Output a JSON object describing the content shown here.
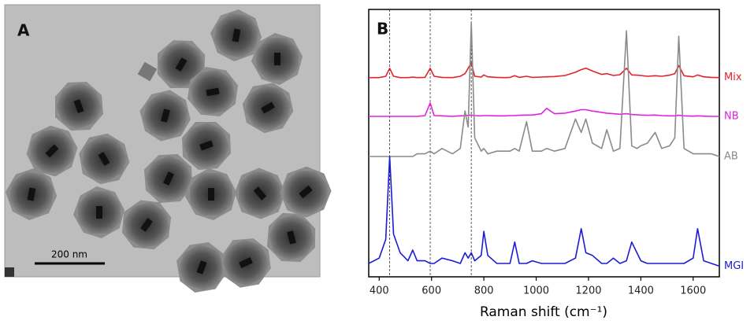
{
  "image_panel": {
    "label": "A",
    "scale_bar": "200 nm"
  },
  "chart_data": {
    "type": "line",
    "panel_label": "B",
    "xlabel": "Raman shift (cm⁻¹)",
    "xlim": [
      360,
      1700
    ],
    "xticks": [
      400,
      600,
      800,
      1000,
      1200,
      1400,
      1600
    ],
    "ylim": [
      0,
      100
    ],
    "reference_lines": [
      440,
      595,
      752
    ],
    "grid": false,
    "x": [
      360,
      400,
      425,
      440,
      455,
      480,
      510,
      528,
      545,
      575,
      595,
      610,
      640,
      680,
      710,
      728,
      740,
      752,
      765,
      790,
      800,
      815,
      850,
      880,
      900,
      918,
      935,
      963,
      985,
      1020,
      1040,
      1070,
      1110,
      1150,
      1172,
      1190,
      1215,
      1250,
      1270,
      1295,
      1320,
      1345,
      1365,
      1385,
      1400,
      1425,
      1455,
      1480,
      1510,
      1530,
      1545,
      1565,
      1600,
      1617,
      1640,
      1670,
      1700
    ],
    "series": [
      {
        "name": "Mix",
        "color": "#e3232c",
        "values": [
          74.5,
          74.5,
          75,
          78,
          75,
          74.5,
          74.5,
          74.7,
          74.5,
          74.6,
          78,
          75,
          74.6,
          74.5,
          75,
          76,
          78,
          80,
          75,
          74.7,
          75.5,
          74.8,
          74.6,
          74.5,
          74.6,
          75.2,
          74.6,
          75,
          74.6,
          74.7,
          74.8,
          74.9,
          75.3,
          76.5,
          77.5,
          78,
          77,
          75.7,
          76,
          75.3,
          75.6,
          78,
          75.5,
          75.4,
          75.3,
          75,
          75.2,
          75,
          75.4,
          76,
          79,
          75.2,
          74.8,
          75.5,
          74.8,
          74.6,
          74.5
        ]
      },
      {
        "name": "NB",
        "color": "#e020e0",
        "values": [
          60,
          60,
          60,
          60,
          60,
          60,
          60,
          60,
          60,
          60.3,
          65,
          60.3,
          60.2,
          60,
          60.2,
          60.3,
          60.4,
          60.5,
          60.3,
          60.2,
          60.3,
          60.3,
          60.2,
          60.2,
          60.3,
          60.3,
          60.4,
          60.5,
          60.5,
          61,
          63,
          61,
          61.2,
          62,
          62.5,
          62.5,
          62,
          61.5,
          61.2,
          61,
          60.8,
          61,
          60.7,
          60.6,
          60.5,
          60.4,
          60.5,
          60.3,
          60.2,
          60.2,
          60.4,
          60.2,
          60.1,
          60.2,
          60.1,
          60,
          60
        ]
      },
      {
        "name": "AB",
        "color": "#8a8a8a",
        "values": [
          45,
          45,
          45,
          45,
          45,
          45,
          45,
          45,
          46,
          46,
          47,
          46,
          48,
          46,
          48,
          62,
          56,
          95,
          52,
          47,
          48,
          46,
          47,
          47,
          47,
          48,
          47,
          58,
          47,
          47,
          48,
          47,
          48,
          59,
          54,
          59,
          50,
          48,
          55,
          47,
          48,
          92,
          49,
          48,
          49,
          50,
          54,
          48,
          49,
          52,
          90,
          48,
          46,
          46,
          46,
          46,
          45
        ]
      },
      {
        "name": "MGI",
        "color": "#1c1cd6",
        "values": [
          5,
          7,
          14,
          45,
          16,
          9,
          6,
          10,
          6,
          6,
          5,
          5,
          7,
          6,
          5,
          9,
          7,
          9,
          6,
          8,
          17,
          8,
          5,
          5,
          5,
          13,
          5,
          5,
          6,
          5,
          5,
          5,
          5,
          7,
          18,
          9,
          8,
          5,
          5,
          7,
          5,
          6,
          13,
          9,
          6,
          5,
          5,
          5,
          5,
          5,
          5,
          5,
          7,
          18,
          6,
          5,
          4
        ]
      }
    ]
  }
}
